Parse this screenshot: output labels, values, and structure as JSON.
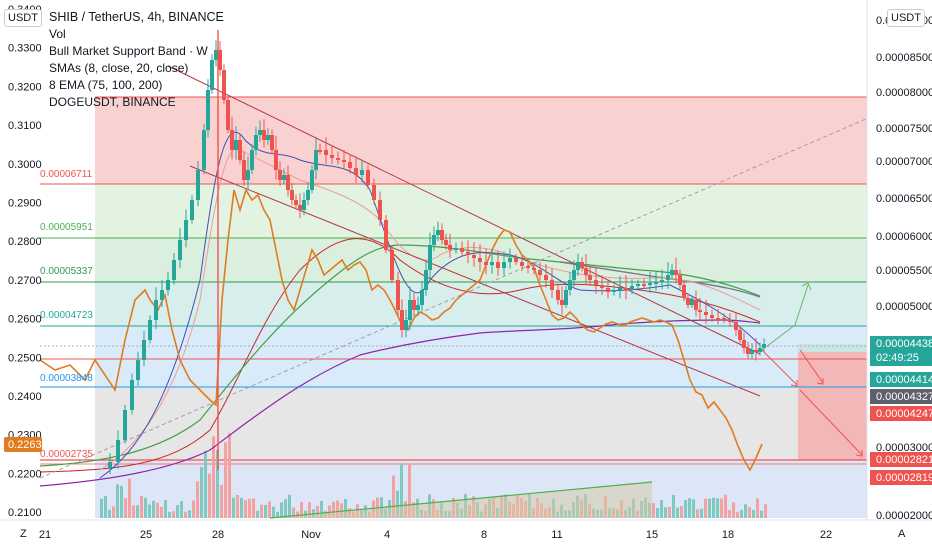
{
  "header": {
    "title": "SHIB / TetherUS, 4h, BINANCE",
    "indicators": [
      "Vol",
      "Bull Market Support Band · W",
      "SMAs (8, close, 20, close)",
      "8 EMA (75, 100, 200)",
      "DOGEUSDT, BINANCE"
    ],
    "left_currency_button": "USDT",
    "right_currency_button": "USDT"
  },
  "corner": {
    "left": "Z",
    "right": "A"
  },
  "colors": {
    "up": "#26a69a",
    "down": "#ef5350",
    "doge_line": "#e17b1f",
    "red_zone": "#f7c6c6",
    "green_zone": "#d9f0d9",
    "blue_zone": "#d6eaf8",
    "grey_zone": "#e4e4e4",
    "trend_line": "#b23a48"
  },
  "chart_data": {
    "type": "candlestick",
    "symbol": "SHIB / TetherUS",
    "interval": "4h",
    "exchange": "BINANCE",
    "x_ticks": [
      "21",
      "25",
      "28",
      "Nov",
      "4",
      "8",
      "11",
      "15",
      "18",
      "22"
    ],
    "right_axis": {
      "ticks": [
        "0.00009000",
        "0.00008500",
        "0.00008000",
        "0.00007500",
        "0.00007000",
        "0.00006500",
        "0.00006000",
        "0.00005500",
        "0.00005000",
        "0.00003000",
        "0.00002000"
      ],
      "ylim": [
        2e-05,
        9e-05
      ]
    },
    "left_axis": {
      "label": "DOGEUSDT",
      "ticks": [
        "0.3400",
        "0.3300",
        "0.3200",
        "0.3100",
        "0.3000",
        "0.2900",
        "0.2800",
        "0.2700",
        "0.2600",
        "0.2500",
        "0.2400",
        "0.2300",
        "0.2200",
        "0.2100"
      ],
      "ylim": [
        0.2,
        0.34
      ],
      "current_value": "0.2263"
    },
    "fib_levels": [
      {
        "value": "0.00006711",
        "color": "#ef5350"
      },
      {
        "value": "0.00005951",
        "color": "#4caf50"
      },
      {
        "value": "0.00005337",
        "color": "#2e9b4f"
      },
      {
        "value": "0.00004723",
        "color": "#26a69a"
      },
      {
        "value": "0.00003848",
        "color": "#2196f3"
      },
      {
        "value": "0.00002735",
        "color": "#ef5350"
      }
    ],
    "price_labels": [
      {
        "value": "0.00004438",
        "sub": "02:49:25",
        "color": "#26a69a"
      },
      {
        "value": "0.00004414",
        "color": "#26a69a"
      },
      {
        "value": "0.00004327",
        "color": "#5d606b"
      },
      {
        "value": "0.00004247",
        "color": "#ef5350"
      },
      {
        "value": "0.00002821",
        "color": "#ef5350"
      },
      {
        "value": "0.00002819",
        "color": "#ef5350"
      }
    ],
    "grid": false
  }
}
